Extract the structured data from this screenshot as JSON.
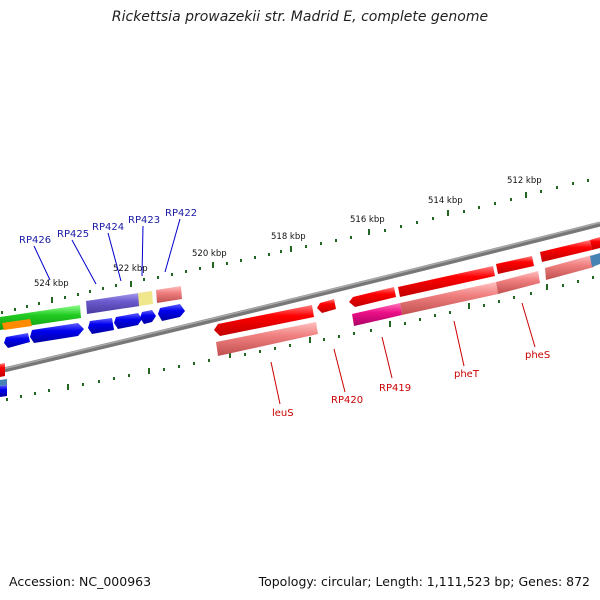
{
  "title": "Rickettsia prowazekii str. Madrid E, complete genome",
  "accession": "Accession: NC_000963",
  "summary": "Topology: circular; Length: 1,111,523 bp; Genes: 872",
  "scale_labels": [
    "512 kbp",
    "514 kbp",
    "516 kbp",
    "518 kbp",
    "520 kbp",
    "522 kbp",
    "524 kbp"
  ],
  "gene_labels_top": [
    "RP426",
    "RP425",
    "RP424",
    "RP423",
    "RP422"
  ],
  "gene_labels_bottom": [
    "leuS",
    "RP420",
    "RP419",
    "pheT",
    "pheS"
  ],
  "colors": {
    "red": "#ff0000",
    "pink": "#f08080",
    "magenta": "#ee1188",
    "blue": "#0000ee",
    "purple": "#6a5acd",
    "green": "#22cc22",
    "orange": "#ff8c00",
    "khaki": "#f0e68c",
    "steelblue": "#4682b4",
    "backbone": "#777777",
    "tick": "#226622"
  }
}
